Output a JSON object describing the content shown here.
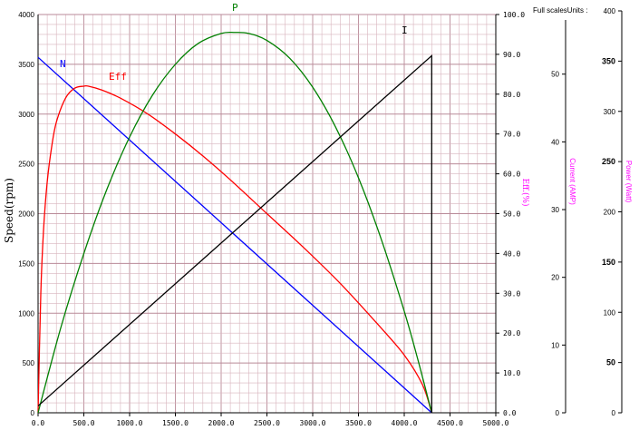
{
  "chart_data": {
    "type": "line",
    "xlim": [
      0,
      5000
    ],
    "x_ticks": [
      "0.0",
      "500.0",
      "1000.0",
      "1500.0",
      "2000.0",
      "2500.0",
      "3000.0",
      "3500.0",
      "4000.0",
      "4500.0",
      "5000.0"
    ],
    "left_axis": {
      "label": "Speed(rpm)",
      "ylim": [
        0,
        4000
      ],
      "ticks": [
        "0",
        "500",
        "1000",
        "1500",
        "2000",
        "2500",
        "3000",
        "3500",
        "4000"
      ]
    },
    "eff_axis": {
      "label": "Eff.(%)",
      "ylim": [
        0,
        100
      ],
      "ticks": [
        "0.0",
        "10.0",
        "20.0",
        "30.0",
        "40.0",
        "50.0",
        "60.0",
        "70.0",
        "80.0",
        "90.0",
        "100.0"
      ]
    },
    "current_axis": {
      "label": "Current (AMP)",
      "ylim": [
        0,
        58
      ],
      "ticks": [
        "0",
        "10",
        "20",
        "30",
        "40",
        "50"
      ]
    },
    "power_axis": {
      "label": "Power (Watt)",
      "ylim": [
        0,
        400
      ],
      "ticks": [
        "0",
        "50",
        "100",
        "150",
        "200",
        "250",
        "300",
        "350",
        "400"
      ]
    },
    "full_scales_label": "Full scalesUnits :",
    "grid": true,
    "colors": {
      "grid_minor": "#d8b4be",
      "grid_major": "#b98a98",
      "speed": "#0000ff",
      "eff": "#ff0000",
      "power": "#008000",
      "current": "#000000",
      "axis_label_magenta": "#ff00ff"
    },
    "series": [
      {
        "name": "N",
        "color": "#0000ff",
        "axis": "left",
        "x": [
          0,
          4300
        ],
        "y": [
          3570,
          0
        ]
      },
      {
        "name": "Eff",
        "color": "#ff0000",
        "axis": "eff",
        "x": [
          0,
          30,
          60,
          100,
          150,
          200,
          300,
          400,
          500,
          550,
          700,
          900,
          1200,
          1500,
          1800,
          2100,
          2500,
          2900,
          3300,
          3700,
          4000,
          4200,
          4300
        ],
        "y": [
          0,
          30,
          46,
          58,
          67,
          73,
          79,
          81.5,
          82,
          82,
          81,
          79,
          75,
          70,
          64.5,
          58.5,
          50,
          41.5,
          32.5,
          22.5,
          14.5,
          7,
          0
        ]
      },
      {
        "name": "P",
        "color": "#008000",
        "axis": "power",
        "x": [
          0,
          250,
          500,
          750,
          1000,
          1250,
          1500,
          1750,
          2000,
          2150,
          2300,
          2500,
          2750,
          3000,
          3250,
          3500,
          3750,
          4000,
          4150,
          4300
        ],
        "y": [
          0,
          86,
          160,
          224,
          277,
          319,
          350,
          371,
          381,
          382,
          381,
          374,
          356,
          327,
          287,
          236,
          174,
          102,
          53,
          0
        ]
      },
      {
        "name": "I",
        "color": "#000000",
        "axis": "current",
        "x": [
          0,
          4300,
          4300
        ],
        "y": [
          1,
          52,
          0
        ]
      }
    ],
    "labels": {
      "N": "N",
      "Eff": "Eff",
      "P": "P",
      "I": "I"
    }
  }
}
